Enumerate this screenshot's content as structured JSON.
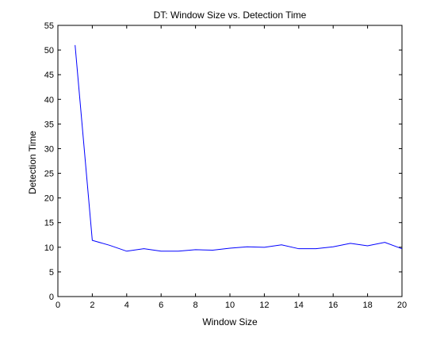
{
  "chart_data": {
    "type": "line",
    "title": "DT: Window Size vs. Detection Time",
    "xlabel": "Window Size",
    "ylabel": "Detection Time",
    "xlim": [
      0,
      20
    ],
    "ylim": [
      0,
      55
    ],
    "xticks": [
      0,
      2,
      4,
      6,
      8,
      10,
      12,
      14,
      16,
      18,
      20
    ],
    "yticks": [
      0,
      5,
      10,
      15,
      20,
      25,
      30,
      35,
      40,
      45,
      50,
      55
    ],
    "grid": false,
    "series": [
      {
        "color": "#0000ff",
        "x": [
          1,
          2,
          3,
          4,
          5,
          6,
          7,
          8,
          9,
          10,
          11,
          12,
          13,
          14,
          15,
          16,
          17,
          18,
          19,
          20
        ],
        "y": [
          51,
          11.4,
          10.4,
          9.2,
          9.7,
          9.2,
          9.2,
          9.5,
          9.4,
          9.8,
          10.1,
          10.0,
          10.5,
          9.7,
          9.7,
          10.1,
          10.8,
          10.3,
          11.0,
          9.7
        ]
      }
    ]
  }
}
